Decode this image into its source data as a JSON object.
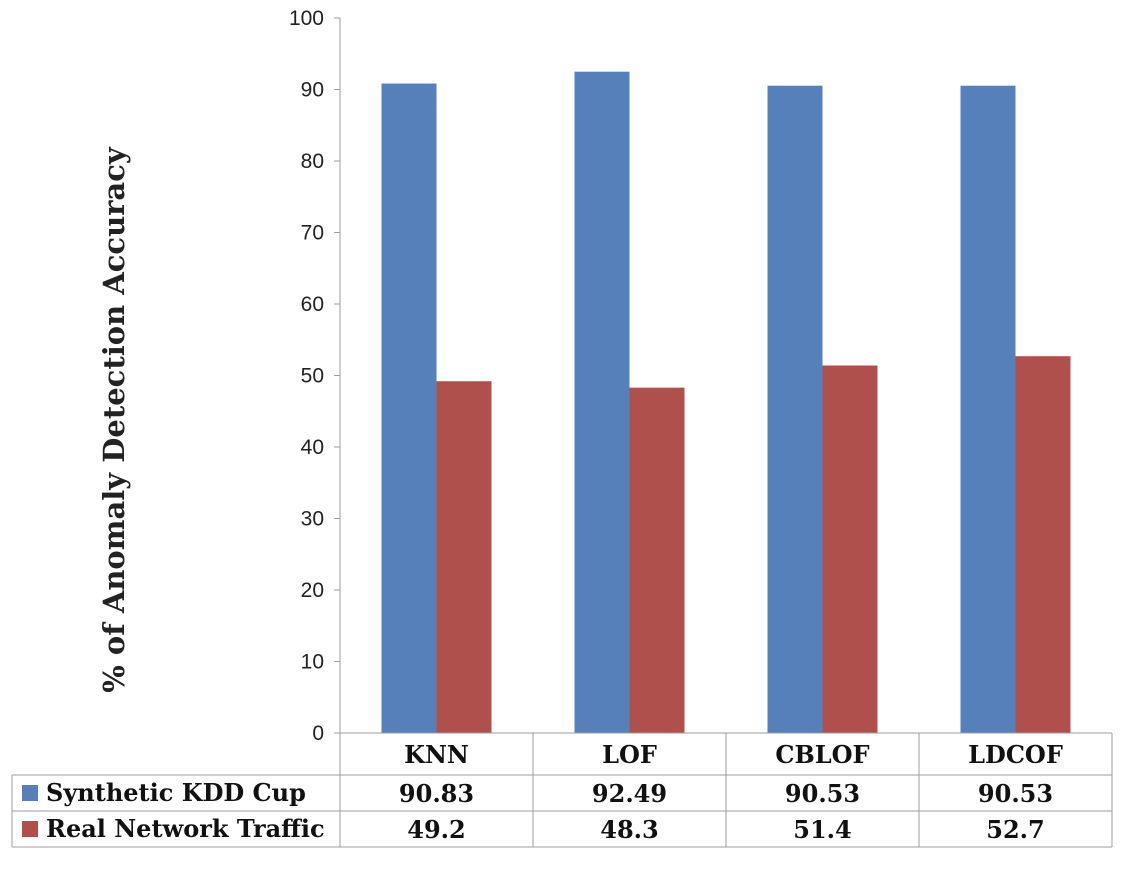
{
  "chart_data": {
    "type": "bar",
    "categories": [
      "KNN",
      "LOF",
      "CBLOF",
      "LDCOF"
    ],
    "series": [
      {
        "name": "Synthetic KDD Cup",
        "color": "#5580b9",
        "values": [
          90.83,
          92.49,
          90.53,
          90.53
        ],
        "labels": [
          "90.83",
          "92.49",
          "90.53",
          "90.53"
        ]
      },
      {
        "name": "Real Network Traffic",
        "color": "#b0504c",
        "values": [
          49.2,
          48.3,
          51.4,
          52.7
        ],
        "labels": [
          "49.2",
          "48.3",
          "51.4",
          "52.7"
        ]
      }
    ],
    "ylabel": "% of Anomaly Detection Accuracy",
    "xlabel": "",
    "ylim": [
      0,
      100
    ],
    "yticks": [
      "0",
      "10",
      "20",
      "30",
      "40",
      "50",
      "60",
      "70",
      "80",
      "90",
      "100"
    ],
    "legend": "data-table",
    "grid": false
  }
}
